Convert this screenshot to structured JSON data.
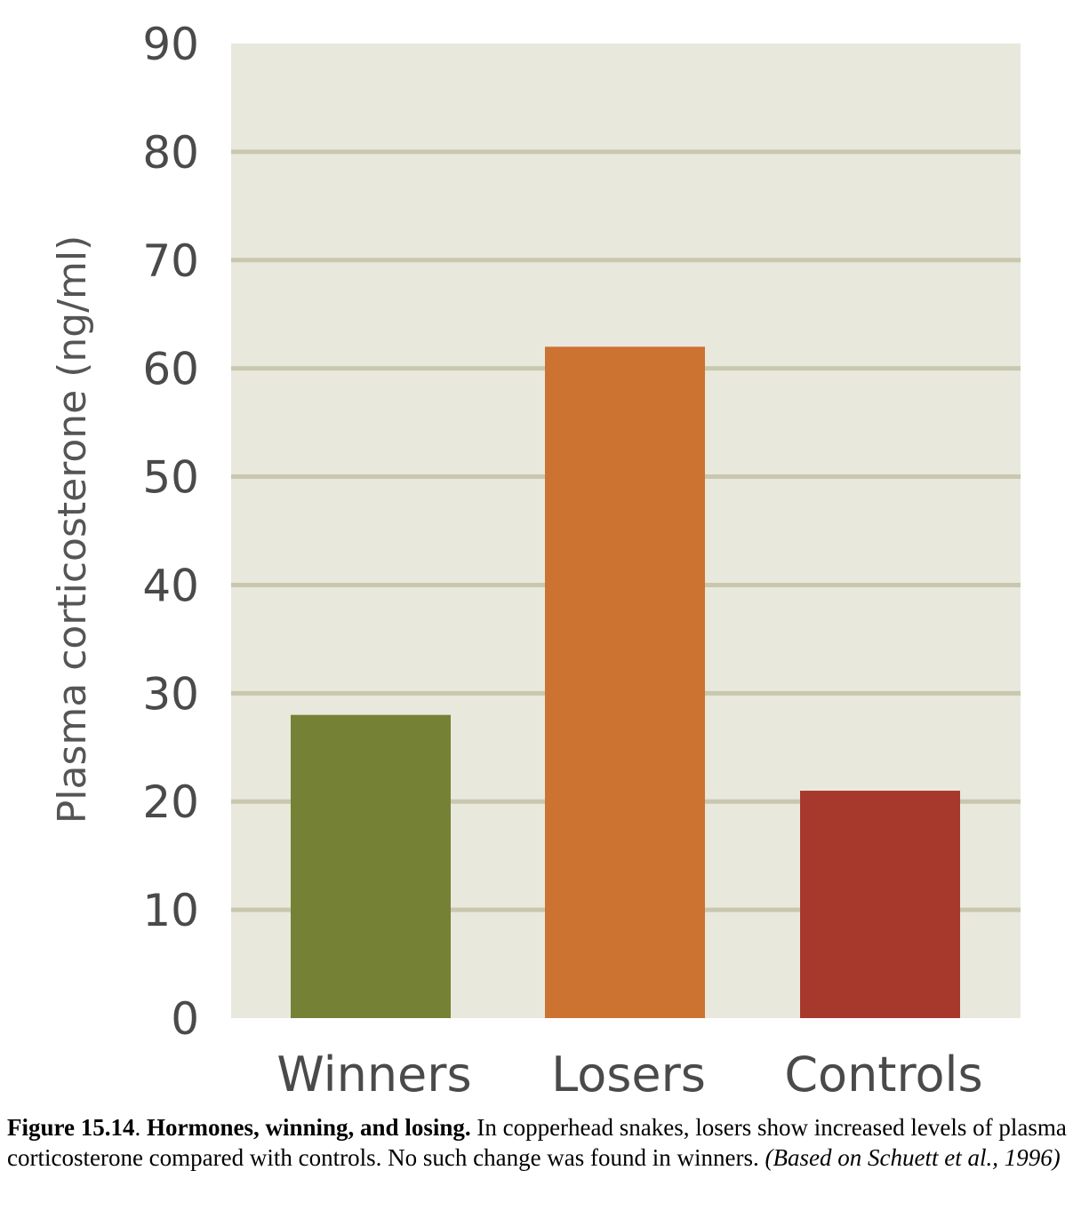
{
  "chart_data": {
    "type": "bar",
    "categories": [
      "Winners",
      "Losers",
      "Controls"
    ],
    "values": [
      28,
      62,
      21
    ],
    "colors": [
      "#758236",
      "#cc7331",
      "#a6392c"
    ],
    "ylabel": "Plasma corticosterone (ng/ml)",
    "ylim": [
      0,
      90
    ],
    "yticks": [
      0,
      10,
      20,
      30,
      40,
      50,
      60,
      70,
      80,
      90
    ],
    "grid": true,
    "background_color": "#e9e8dd",
    "grid_color": "#c9c7ae"
  },
  "caption": {
    "figure_number": "Figure 15.14",
    "sep": ". ",
    "title": "Hormones, winning, and losing.",
    "body": " In copperhead snakes, losers show increased levels of plasma corticosterone compared with controls. No such change was found in winners. ",
    "source": "(Based on Schuett et al., 1996)"
  }
}
